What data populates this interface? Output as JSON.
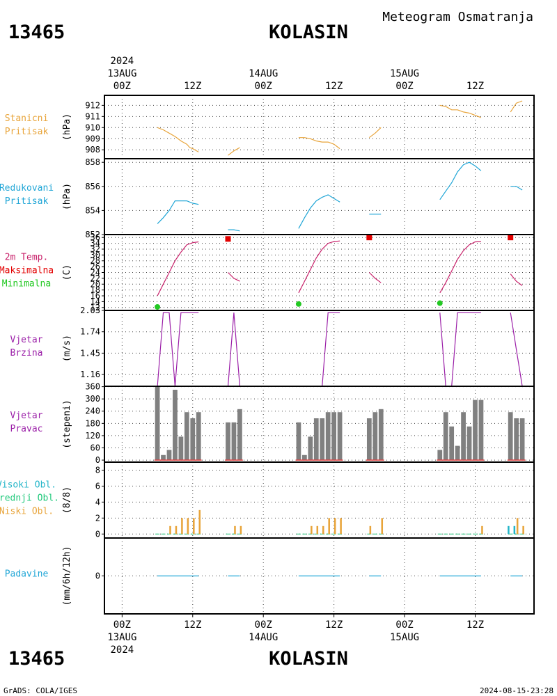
{
  "header": {
    "station_id": "13465",
    "station_name": "KOLASIN",
    "product": "Meteogram Osmatranja"
  },
  "footer": {
    "station_id": "13465",
    "station_name": "KOLASIN",
    "credit": "GrADS: COLA/IGES",
    "timestamp": "2024-08-15-23:28"
  },
  "time_axis": {
    "year": "2024",
    "labels": [
      {
        "hour": 0,
        "line1": "13AUG",
        "line2": "00Z"
      },
      {
        "hour": 12,
        "line1": "",
        "line2": "12Z"
      },
      {
        "hour": 24,
        "line1": "14AUG",
        "line2": "00Z"
      },
      {
        "hour": 36,
        "line1": "",
        "line2": "12Z"
      },
      {
        "hour": 48,
        "line1": "15AUG",
        "line2": "00Z"
      },
      {
        "hour": 60,
        "line1": "",
        "line2": "12Z"
      }
    ],
    "range_hours": [
      -3,
      70
    ]
  },
  "colors": {
    "station_pressure": "#e8a43a",
    "reduced_pressure": "#1ea5d6",
    "temperature": "#c8206a",
    "tmax": "#e30000",
    "tmin": "#22c822",
    "wind": "#9b1fa8",
    "wind_dir_bar": "#808080",
    "wind_dir_base": "#e04040",
    "cloud_high": "#22b5c8",
    "cloud_mid": "#1ec87a",
    "cloud_low": "#e8a43a",
    "precip": "#1ea5d6"
  },
  "chart_data": [
    {
      "type": "line",
      "panel": "station_pressure",
      "labels": [
        "Stanicni",
        "Pritisak"
      ],
      "unit": "(hPa)",
      "ylim": [
        907.2,
        912.9
      ],
      "yticks": [
        908,
        909,
        910,
        911,
        912
      ],
      "series": [
        {
          "name": "Stanicni Pritisak",
          "segments": [
            [
              [
                6,
                910.0
              ],
              [
                7,
                909.8
              ],
              [
                8,
                909.5
              ],
              [
                9,
                909.2
              ],
              [
                10,
                908.8
              ],
              [
                11,
                908.5
              ],
              [
                11.5,
                908.2
              ],
              [
                12,
                908.1
              ],
              [
                13,
                907.8
              ]
            ],
            [
              [
                18,
                907.5
              ],
              [
                19,
                907.9
              ],
              [
                20,
                908.2
              ]
            ],
            [
              [
                30,
                909.1
              ],
              [
                31,
                909.1
              ],
              [
                32,
                909.0
              ],
              [
                33,
                908.8
              ],
              [
                34,
                908.7
              ],
              [
                35,
                908.7
              ],
              [
                36,
                908.5
              ],
              [
                37,
                908.1
              ]
            ],
            [
              [
                42,
                909.1
              ],
              [
                43,
                909.5
              ],
              [
                44,
                910.0
              ]
            ],
            [
              [
                54,
                912.0
              ],
              [
                55,
                911.9
              ],
              [
                56,
                911.6
              ],
              [
                57,
                911.6
              ],
              [
                58,
                911.4
              ],
              [
                59,
                911.3
              ],
              [
                60,
                911.1
              ],
              [
                61,
                910.9
              ]
            ],
            [
              [
                66,
                911.4
              ],
              [
                67,
                912.2
              ],
              [
                68,
                912.4
              ]
            ]
          ]
        }
      ]
    },
    {
      "type": "line",
      "panel": "reduced_pressure",
      "labels": [
        "Redukovani",
        "Pritisak"
      ],
      "unit": "(hPa)",
      "ylim": [
        852.0,
        858.3
      ],
      "yticks": [
        852,
        854,
        856,
        858
      ],
      "series": [
        {
          "name": "Redukovani Pritisak",
          "segments": [
            [
              [
                6,
                852.9
              ],
              [
                7,
                853.4
              ],
              [
                8,
                854.0
              ],
              [
                9,
                854.8
              ],
              [
                10,
                854.8
              ],
              [
                11,
                854.8
              ],
              [
                12,
                854.6
              ],
              [
                13,
                854.5
              ]
            ],
            [
              [
                18,
                852.4
              ],
              [
                19,
                852.4
              ],
              [
                20,
                852.3
              ]
            ],
            [
              [
                30,
                852.5
              ],
              [
                31,
                853.4
              ],
              [
                32,
                854.2
              ],
              [
                33,
                854.8
              ],
              [
                34,
                855.1
              ],
              [
                35,
                855.3
              ],
              [
                36,
                855.0
              ],
              [
                37,
                854.7
              ]
            ],
            [
              [
                42,
                853.7
              ],
              [
                43,
                853.7
              ],
              [
                44,
                853.7
              ]
            ],
            [
              [
                54,
                854.9
              ],
              [
                55,
                855.6
              ],
              [
                56,
                856.3
              ],
              [
                57,
                857.2
              ],
              [
                58,
                857.8
              ],
              [
                59,
                858.0
              ],
              [
                60,
                857.7
              ],
              [
                61,
                857.3
              ]
            ],
            [
              [
                66,
                856.0
              ],
              [
                67,
                856.0
              ],
              [
                68,
                855.7
              ]
            ]
          ]
        }
      ]
    },
    {
      "type": "line",
      "panel": "temperature",
      "labels": [
        "2m Temp.",
        "Maksimalna",
        "Minimalna"
      ],
      "unit": "(C)",
      "ylim": [
        11,
        37
      ],
      "yticks": [
        12,
        14,
        16,
        18,
        20,
        22,
        24,
        26,
        28,
        30,
        32,
        34,
        36
      ],
      "series": [
        {
          "name": "2m Temp.",
          "segments": [
            [
              [
                6,
                16
              ],
              [
                7,
                20
              ],
              [
                8,
                24
              ],
              [
                9,
                28
              ],
              [
                10,
                31
              ],
              [
                11,
                33.5
              ],
              [
                12,
                34.2
              ],
              [
                13,
                34.5
              ]
            ],
            [
              [
                18,
                24
              ],
              [
                19,
                22
              ],
              [
                20,
                21
              ]
            ],
            [
              [
                30,
                17
              ],
              [
                31,
                21
              ],
              [
                32,
                25
              ],
              [
                33,
                29
              ],
              [
                34,
                32
              ],
              [
                35,
                34
              ],
              [
                36,
                34.6
              ],
              [
                37,
                34.8
              ]
            ],
            [
              [
                42,
                24
              ],
              [
                43,
                22
              ],
              [
                44,
                20.5
              ]
            ],
            [
              [
                54,
                17
              ],
              [
                55,
                20.5
              ],
              [
                56,
                24.5
              ],
              [
                57,
                28.5
              ],
              [
                58,
                31.5
              ],
              [
                59,
                33.5
              ],
              [
                60,
                34.5
              ],
              [
                61,
                34.6
              ]
            ],
            [
              [
                66,
                23.5
              ],
              [
                67,
                21
              ],
              [
                68,
                19.5
              ]
            ]
          ]
        },
        {
          "name": "Maksimalna",
          "points": [
            [
              18,
              35.5
            ],
            [
              42,
              36
            ],
            [
              66,
              36
            ]
          ]
        },
        {
          "name": "Minimalna",
          "points": [
            [
              6,
              12.2
            ],
            [
              30,
              13.2
            ],
            [
              54,
              13.5
            ]
          ]
        }
      ]
    },
    {
      "type": "line",
      "panel": "wind_speed",
      "labels": [
        "Vjetar",
        "Brzina"
      ],
      "unit": "(m/s)",
      "ylim": [
        1.0,
        2.03
      ],
      "yticks": [
        1.16,
        1.45,
        1.74,
        2.03
      ],
      "series": [
        {
          "name": "Vjetar Brzina",
          "segments": [
            [
              [
                6,
                1.0
              ],
              [
                7,
                2.0
              ],
              [
                8,
                2.0
              ],
              [
                9,
                1.0
              ],
              [
                10,
                2.0
              ],
              [
                11,
                2.0
              ],
              [
                12,
                2.0
              ],
              [
                13,
                2.0
              ]
            ],
            [
              [
                18,
                1.0
              ],
              [
                19,
                2.0
              ],
              [
                20,
                1.0
              ]
            ],
            [
              [
                30,
                1.0
              ],
              [
                31,
                1.0
              ],
              [
                32,
                1.0
              ],
              [
                33,
                1.0
              ],
              [
                34,
                1.0
              ],
              [
                35,
                2.0
              ],
              [
                36,
                2.0
              ],
              [
                37,
                2.0
              ]
            ],
            [
              [
                42,
                1.0
              ],
              [
                43,
                1.0
              ],
              [
                44,
                1.0
              ]
            ],
            [
              [
                54,
                2.0
              ],
              [
                55,
                1.0
              ],
              [
                56,
                1.0
              ],
              [
                57,
                2.0
              ],
              [
                58,
                2.0
              ],
              [
                59,
                2.0
              ],
              [
                60,
                2.0
              ],
              [
                61,
                2.0
              ]
            ],
            [
              [
                66,
                2.0
              ],
              [
                67,
                1.5
              ],
              [
                68,
                1.0
              ]
            ]
          ]
        }
      ]
    },
    {
      "type": "bar",
      "panel": "wind_direction",
      "labels": [
        "Vjetar",
        "Pravac"
      ],
      "unit": "(stepeni)",
      "ylim": [
        -10,
        362
      ],
      "yticks": [
        0,
        60,
        120,
        180,
        240,
        300,
        360
      ],
      "x": [
        6,
        7,
        8,
        9,
        10,
        11,
        12,
        13,
        18,
        19,
        20,
        30,
        31,
        32,
        33,
        34,
        35,
        36,
        37,
        42,
        43,
        44,
        54,
        55,
        56,
        57,
        58,
        59,
        60,
        61,
        66,
        67,
        68
      ],
      "values": [
        360,
        25,
        50,
        345,
        115,
        235,
        205,
        235,
        185,
        185,
        250,
        185,
        25,
        115,
        205,
        205,
        235,
        235,
        235,
        205,
        235,
        250,
        50,
        235,
        165,
        70,
        235,
        165,
        295,
        295,
        235,
        205,
        205
      ]
    },
    {
      "type": "bar",
      "panel": "clouds",
      "labels": [
        "Visoki Obl.",
        "Srednji Obl.",
        "Niski Obl."
      ],
      "unit": "(8/8)",
      "ylim": [
        -0.5,
        9
      ],
      "yticks": [
        0,
        2,
        4,
        6,
        8
      ],
      "x": [
        6,
        7,
        8,
        9,
        10,
        11,
        12,
        13,
        18,
        19,
        20,
        30,
        31,
        32,
        33,
        34,
        35,
        36,
        37,
        42,
        43,
        44,
        54,
        55,
        56,
        57,
        58,
        59,
        60,
        61,
        66,
        67,
        68
      ],
      "series": [
        {
          "name": "Visoki Obl.",
          "values": [
            0,
            0,
            0,
            0,
            0,
            0,
            0,
            0,
            0,
            0,
            0,
            0,
            0,
            0,
            0,
            0,
            0,
            0,
            0,
            0,
            0,
            0,
            0,
            0,
            0,
            0,
            0,
            0,
            0,
            0,
            1,
            1,
            0
          ]
        },
        {
          "name": "Srednji Obl.",
          "values": [
            0,
            0,
            0,
            0,
            0,
            0,
            0,
            0,
            0,
            0,
            0,
            0,
            0,
            0,
            0,
            0,
            0,
            0,
            0,
            0,
            0,
            0,
            0,
            0,
            0,
            0,
            0,
            0,
            0,
            0,
            0,
            0,
            0
          ]
        },
        {
          "name": "Niski Obl.",
          "values": [
            0,
            0,
            1,
            1,
            2,
            2,
            2,
            3,
            0,
            1,
            1,
            0,
            0,
            1,
            1,
            1,
            2,
            2,
            2,
            1,
            0,
            2,
            0,
            0,
            0,
            0,
            0,
            0,
            0,
            1,
            0,
            2,
            1
          ]
        }
      ]
    },
    {
      "type": "line",
      "panel": "precipitation",
      "labels": [
        "Padavine"
      ],
      "unit": "(mm/6h/12h)",
      "ylim": [
        -1,
        1
      ],
      "yticks": [
        0
      ],
      "series": [
        {
          "name": "Padavine",
          "segments": [
            [
              [
                6,
                0
              ],
              [
                13,
                0
              ]
            ],
            [
              [
                18,
                0
              ],
              [
                20,
                0
              ]
            ],
            [
              [
                30,
                0
              ],
              [
                37,
                0
              ]
            ],
            [
              [
                42,
                0
              ],
              [
                44,
                0
              ]
            ],
            [
              [
                54,
                0
              ],
              [
                61,
                0
              ]
            ],
            [
              [
                66,
                0
              ],
              [
                68,
                0
              ]
            ]
          ]
        }
      ]
    }
  ]
}
